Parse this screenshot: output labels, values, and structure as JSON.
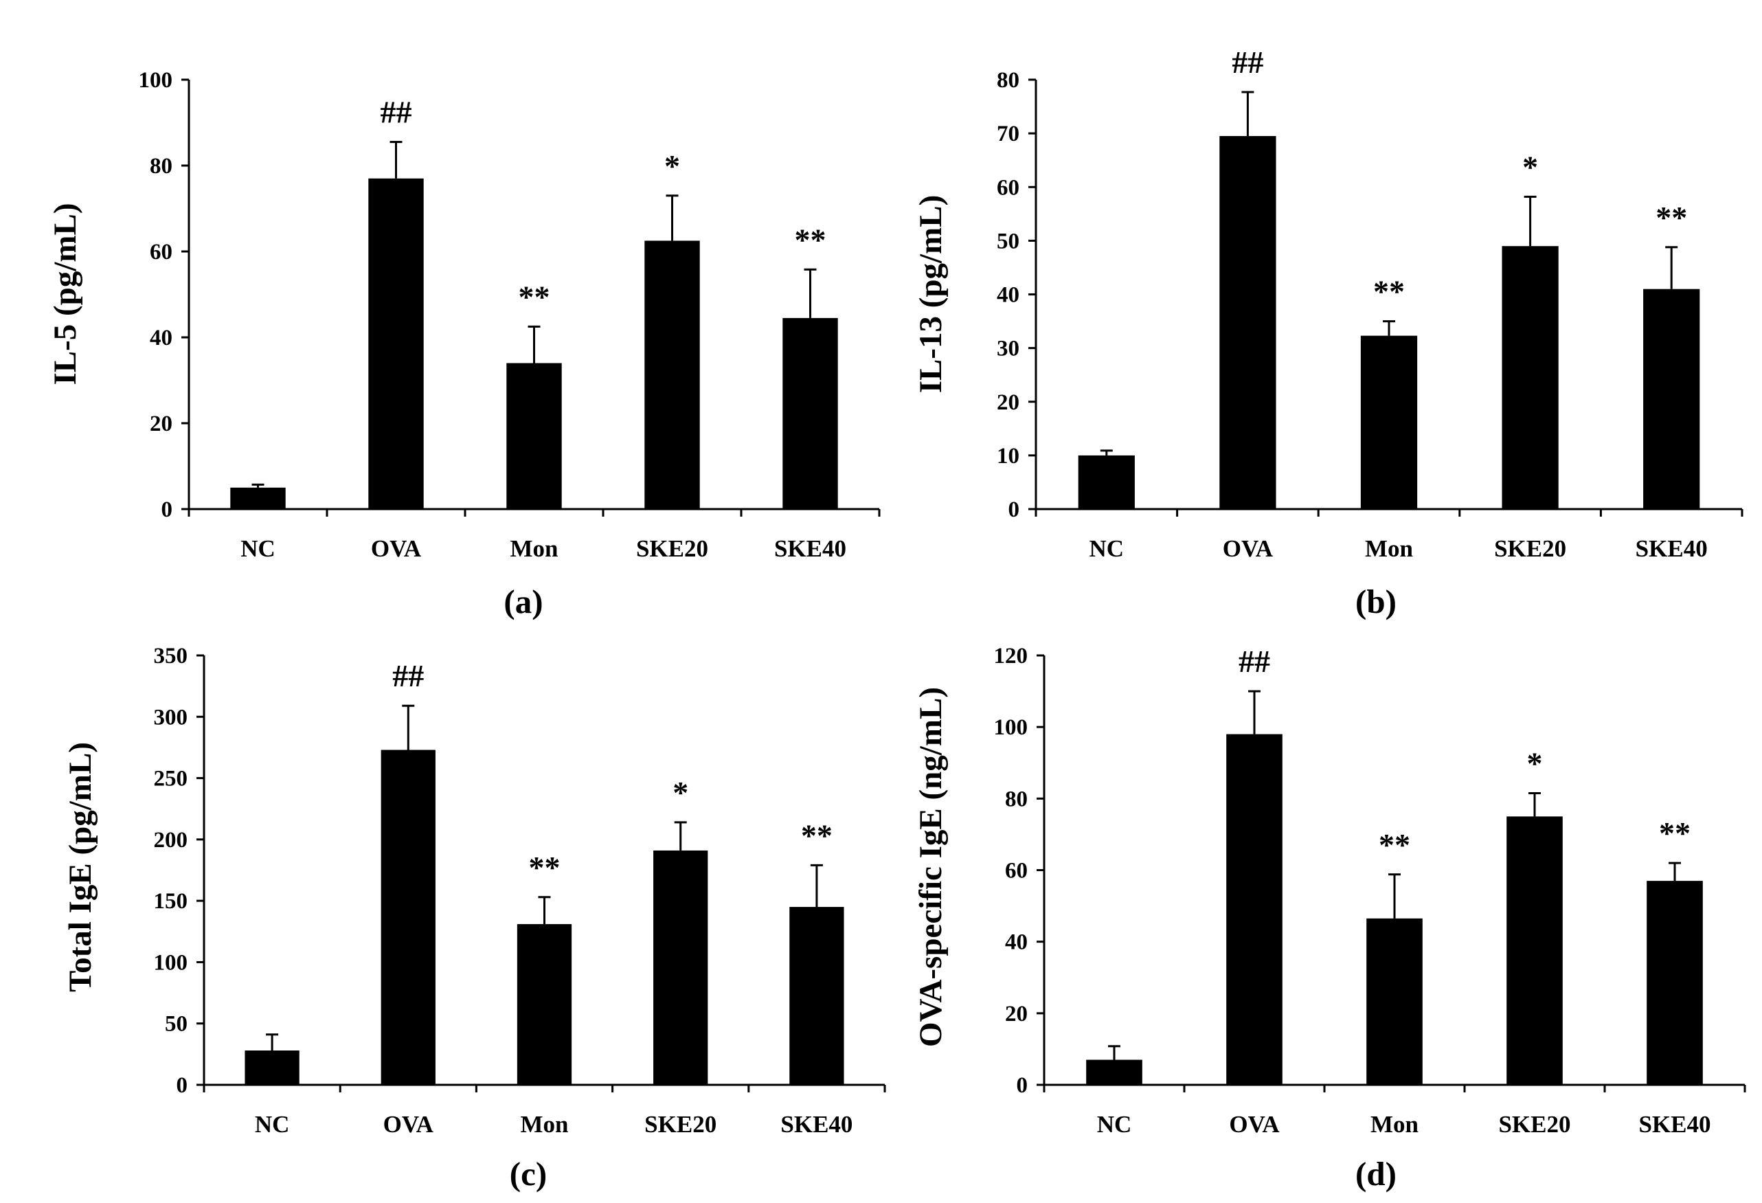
{
  "figure": {
    "background": "#ffffff",
    "bar_color": "#000000"
  },
  "chart_data": [
    {
      "type": "bar",
      "panel_label": "(a)",
      "title": "",
      "xlabel": "",
      "ylabel": "IL-5 (pg/mL)",
      "categories": [
        "NC",
        "OVA",
        "Mon",
        "SKE20",
        "SKE40"
      ],
      "values": [
        5,
        77,
        34,
        62.5,
        44.5
      ],
      "errors": [
        0.7,
        8.5,
        8.5,
        10.5,
        11.3
      ],
      "annotations": [
        "",
        "##",
        "**",
        "*",
        "**"
      ],
      "ylim": [
        0,
        100
      ],
      "yticks": [
        0,
        20,
        40,
        60,
        80,
        100
      ],
      "grid": false
    },
    {
      "type": "bar",
      "panel_label": "(b)",
      "title": "",
      "xlabel": "",
      "ylabel": "IL-13 (pg/mL)",
      "categories": [
        "NC",
        "OVA",
        "Mon",
        "SKE20",
        "SKE40"
      ],
      "values": [
        10,
        69.5,
        32.3,
        49,
        41
      ],
      "errors": [
        0.9,
        8.2,
        2.7,
        9.2,
        7.8
      ],
      "annotations": [
        "",
        "##",
        "**",
        "*",
        "**"
      ],
      "ylim": [
        0,
        80
      ],
      "yticks": [
        0,
        10,
        20,
        30,
        40,
        50,
        60,
        70,
        80
      ],
      "grid": false
    },
    {
      "type": "bar",
      "panel_label": "(c)",
      "title": "",
      "xlabel": "",
      "ylabel": "Total IgE (pg/mL)",
      "categories": [
        "NC",
        "OVA",
        "Mon",
        "SKE20",
        "SKE40"
      ],
      "values": [
        28,
        273,
        131,
        191,
        145
      ],
      "errors": [
        13,
        36,
        22,
        23,
        34
      ],
      "annotations": [
        "",
        "##",
        "**",
        "*",
        "**"
      ],
      "ylim": [
        0,
        350
      ],
      "yticks": [
        0,
        50,
        100,
        150,
        200,
        250,
        300,
        350
      ],
      "grid": false
    },
    {
      "type": "bar",
      "panel_label": "(d)",
      "title": "",
      "xlabel": "",
      "ylabel": "OVA-specific IgE (ng/mL)",
      "categories": [
        "NC",
        "OVA",
        "Mon",
        "SKE20",
        "SKE40"
      ],
      "values": [
        7,
        98,
        46.5,
        75,
        57
      ],
      "errors": [
        3.8,
        12,
        12.3,
        6.5,
        5
      ],
      "annotations": [
        "",
        "##",
        "**",
        "*",
        "**"
      ],
      "ylim": [
        0,
        120
      ],
      "yticks": [
        0,
        20,
        40,
        60,
        80,
        100,
        120
      ],
      "grid": false
    }
  ]
}
